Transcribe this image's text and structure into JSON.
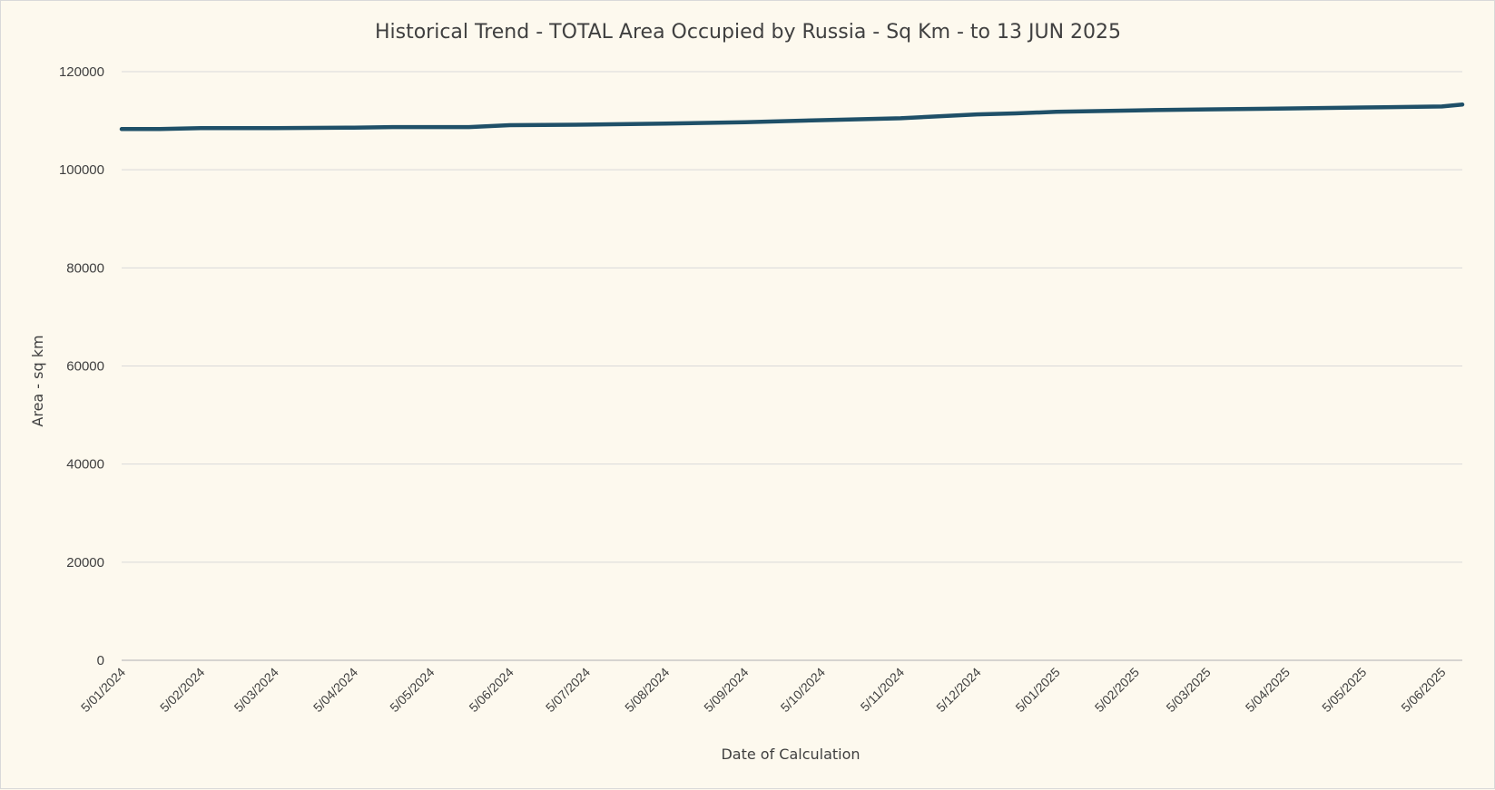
{
  "chart_data": {
    "type": "line",
    "title": "Historical Trend - TOTAL Area Occupied by Russia - Sq Km - to 13 JUN 2025",
    "xlabel": "Date of Calculation",
    "ylabel": "Area - sq km",
    "ylim": [
      0,
      120000
    ],
    "yticks": [
      "0",
      "20000",
      "40000",
      "60000",
      "80000",
      "100000",
      "120000"
    ],
    "xticks": [
      "5/01/2024",
      "5/02/2024",
      "5/03/2024",
      "5/04/2024",
      "5/05/2024",
      "5/06/2024",
      "5/07/2024",
      "5/08/2024",
      "5/09/2024",
      "5/10/2024",
      "5/11/2024",
      "5/12/2024",
      "5/01/2025",
      "5/02/2025",
      "5/03/2025",
      "5/04/2025",
      "5/05/2025",
      "5/06/2025"
    ],
    "x_range": [
      "5/01/2024",
      "13/06/2025"
    ],
    "grid": true,
    "legend": "none",
    "colors": {
      "line": "#1f5068",
      "background": "#fdf9ee",
      "grid": "#d9d9d9",
      "text": "#404040"
    },
    "series": [
      {
        "x": [
          "5/01/2024",
          "20/01/2024",
          "5/02/2024",
          "5/03/2024",
          "5/04/2024",
          "20/04/2024",
          "5/05/2024",
          "20/05/2024",
          "5/06/2024",
          "5/07/2024",
          "5/08/2024",
          "5/09/2024",
          "5/10/2024",
          "5/11/2024",
          "5/12/2024",
          "20/12/2024",
          "5/01/2025",
          "5/02/2025",
          "5/03/2025",
          "5/04/2025",
          "5/05/2025",
          "5/06/2025",
          "13/06/2025"
        ],
        "values": [
          108300,
          108300,
          108500,
          108500,
          108600,
          108700,
          108700,
          108700,
          109100,
          109200,
          109400,
          109700,
          110100,
          110500,
          111300,
          111500,
          111800,
          112100,
          112300,
          112500,
          112700,
          112900,
          113300
        ]
      }
    ]
  }
}
